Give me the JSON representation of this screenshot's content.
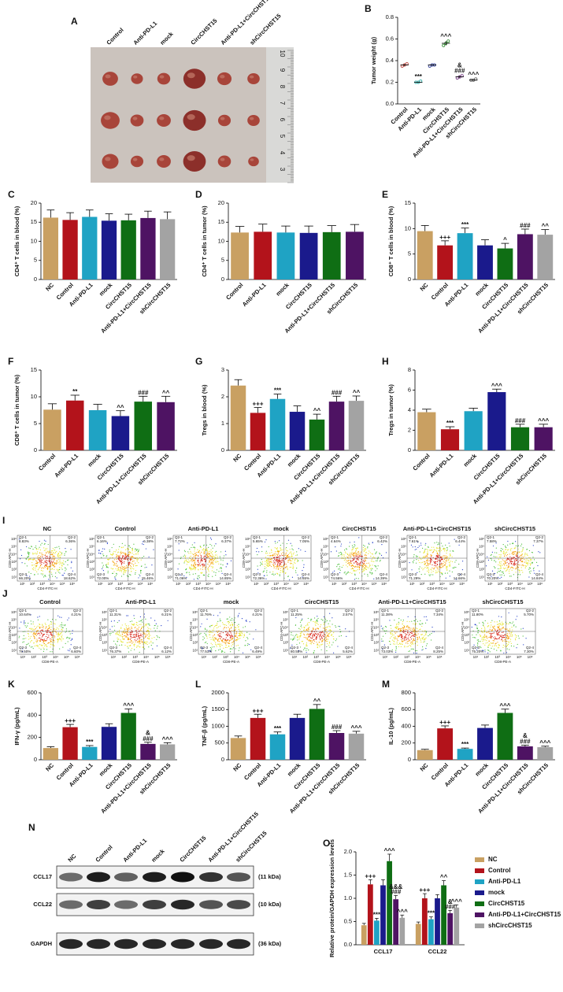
{
  "chart_data": [
    {
      "type": "dot",
      "label": "B",
      "ylabel": "Tumor weight (g)",
      "categories": [
        "Control",
        "Anti-PD-L1",
        "mock",
        "CircCHST15",
        "Anti-PD-L1+CircCHST15",
        "shCircCHST15"
      ],
      "values": [
        [
          0.35,
          0.36,
          0.37
        ],
        [
          0.2,
          0.2,
          0.21
        ],
        [
          0.35,
          0.36,
          0.36
        ],
        [
          0.54,
          0.56,
          0.58
        ],
        [
          0.24,
          0.25,
          0.26
        ],
        [
          0.22,
          0.22,
          0.23
        ]
      ],
      "means": [
        0.36,
        0.2,
        0.36,
        0.56,
        0.25,
        0.22
      ],
      "errors": [
        0.01,
        0.005,
        0.005,
        0.02,
        0.01,
        0.005
      ],
      "colors": [
        "#b5332b",
        "#1aa5a0",
        "#1e2f8c",
        "#2a8a2a",
        "#6a2b7a",
        "#555555"
      ],
      "annotations": [
        null,
        "***",
        null,
        "^^^",
        [
          "&",
          "###"
        ],
        "^^^"
      ],
      "ylim": [
        0,
        0.8
      ],
      "yticks": [
        {
          "value": 0,
          "label": "0.0"
        },
        0.2,
        0.4,
        0.6,
        0.8
      ]
    },
    {
      "type": "bar",
      "label": "C",
      "ylabel": "CD4⁺ T cells in blood (%)",
      "categories": [
        "NC",
        "Control",
        "Anti-PD-L1",
        "mock",
        "CircCHST15",
        "Anti-PD-L1+CircCHST15",
        "shCircCHST15"
      ],
      "values": [
        16.2,
        15.6,
        16.4,
        15.4,
        15.5,
        16.1,
        15.8
      ],
      "errors": [
        2.0,
        1.9,
        1.8,
        1.8,
        1.6,
        1.8,
        1.9
      ],
      "colors": [
        "#c9a062",
        "#b3131b",
        "#1fa3c4",
        "#1a1a8c",
        "#0f6e14",
        "#4e1363",
        "#a3a3a3"
      ],
      "annotations": [
        null,
        null,
        null,
        null,
        null,
        null,
        null
      ],
      "ylim": [
        0,
        20
      ],
      "yticks": [
        0,
        5,
        10,
        15,
        20
      ]
    },
    {
      "type": "bar",
      "label": "D",
      "ylabel": "CD4⁺ T cells in tumor (%)",
      "categories": [
        "Control",
        "Anti-PD-L1",
        "mock",
        "CircCHST15",
        "Anti-PD-L1+CircCHST15",
        "shCircCHST15"
      ],
      "values": [
        12.3,
        12.5,
        12.3,
        12.2,
        12.4,
        12.5
      ],
      "errors": [
        1.6,
        2.0,
        1.7,
        1.8,
        1.7,
        1.9
      ],
      "colors": [
        "#c9a062",
        "#b3131b",
        "#1fa3c4",
        "#1a1a8c",
        "#0f6e14",
        "#4e1363"
      ],
      "annotations": [
        null,
        null,
        null,
        null,
        null,
        null
      ],
      "ylim": [
        0,
        20
      ],
      "yticks": [
        0,
        5,
        10,
        15,
        20
      ]
    },
    {
      "type": "bar",
      "label": "E",
      "ylabel": "CD8⁺ T cells in blood (%)",
      "categories": [
        "NC",
        "Control",
        "Anti-PD-L1",
        "mock",
        "CircCHST15",
        "Anti-PD-L1+CircCHST15",
        "shCircCHST15"
      ],
      "values": [
        9.5,
        6.7,
        9.1,
        6.7,
        6.1,
        8.9,
        8.8
      ],
      "errors": [
        1.1,
        0.9,
        1.0,
        1.1,
        1.0,
        1.0,
        1.0
      ],
      "colors": [
        "#c9a062",
        "#b3131b",
        "#1fa3c4",
        "#1a1a8c",
        "#0f6e14",
        "#4e1363",
        "#a3a3a3"
      ],
      "annotations": [
        null,
        "+++",
        "***",
        null,
        "^",
        "###",
        "^^"
      ],
      "ylim": [
        0,
        15
      ],
      "yticks": [
        0,
        5,
        10,
        15
      ]
    },
    {
      "type": "bar",
      "label": "F",
      "ylabel": "CD8⁺ T cells in tumor (%)",
      "categories": [
        "Control",
        "Anti-PD-L1",
        "mock",
        "CircCHST15",
        "Anti-PD-L1+CircCHST15",
        "shCircCHST15"
      ],
      "values": [
        7.6,
        9.3,
        7.5,
        6.4,
        9.1,
        9.0
      ],
      "errors": [
        1.1,
        1.0,
        1.1,
        1.0,
        1.0,
        1.1
      ],
      "colors": [
        "#c9a062",
        "#b3131b",
        "#1fa3c4",
        "#1a1a8c",
        "#0f6e14",
        "#4e1363"
      ],
      "annotations": [
        null,
        "**",
        null,
        "^^",
        "###",
        "^^"
      ],
      "ylim": [
        0,
        15
      ],
      "yticks": [
        0,
        5,
        10,
        15
      ]
    },
    {
      "type": "bar",
      "label": "G",
      "ylabel": "Tregs in blood (%)",
      "categories": [
        "NC",
        "Control",
        "Anti-PD-L1",
        "mock",
        "CircCHST15",
        "Anti-PD-L1+CircCHST15",
        "shCircCHST15"
      ],
      "values": [
        2.42,
        1.4,
        1.92,
        1.44,
        1.15,
        1.82,
        1.85
      ],
      "errors": [
        0.22,
        0.2,
        0.18,
        0.22,
        0.2,
        0.2,
        0.18
      ],
      "colors": [
        "#c9a062",
        "#b3131b",
        "#1fa3c4",
        "#1a1a8c",
        "#0f6e14",
        "#4e1363",
        "#a3a3a3"
      ],
      "annotations": [
        null,
        "+++",
        "***",
        null,
        "^^",
        "###",
        "^^"
      ],
      "ylim": [
        0,
        3
      ],
      "yticks": [
        0,
        1,
        2,
        3
      ]
    },
    {
      "type": "bar",
      "label": "H",
      "ylabel": "Tregs in tumor (%)",
      "categories": [
        "Control",
        "Anti-PD-L1",
        "mock",
        "CircCHST15",
        "Anti-PD-L1+CircCHST15",
        "shCircCHST15"
      ],
      "values": [
        3.8,
        2.1,
        3.9,
        5.8,
        2.3,
        2.3
      ],
      "errors": [
        0.3,
        0.25,
        0.3,
        0.3,
        0.3,
        0.3
      ],
      "colors": [
        "#c9a062",
        "#b3131b",
        "#1fa3c4",
        "#1a1a8c",
        "#0f6e14",
        "#4e1363"
      ],
      "annotations": [
        null,
        "***",
        null,
        "^^^",
        "###",
        "^^^"
      ],
      "ylim": [
        0,
        8
      ],
      "yticks": [
        0,
        2,
        4,
        6,
        8
      ]
    },
    {
      "type": "bar",
      "label": "K",
      "ylabel": "IFN-γ (pg/mL)",
      "categories": [
        "NC",
        "Control",
        "Anti-PD-L1",
        "mock",
        "CircCHST15",
        "Anti-PD-L1+CircCHST15",
        "shCircCHST15"
      ],
      "values": [
        105,
        292,
        115,
        295,
        420,
        142,
        138
      ],
      "errors": [
        12,
        25,
        12,
        28,
        35,
        15,
        15
      ],
      "colors": [
        "#c9a062",
        "#b3131b",
        "#1fa3c4",
        "#1a1a8c",
        "#0f6e14",
        "#4e1363",
        "#a3a3a3"
      ],
      "annotations": [
        null,
        "+++",
        "***",
        null,
        "^^^",
        [
          "&",
          "###"
        ],
        "^^^"
      ],
      "ylim": [
        0,
        600
      ],
      "yticks": [
        0,
        200,
        400,
        600
      ]
    },
    {
      "type": "bar",
      "label": "L",
      "ylabel": "TNF-β (pg/mL)",
      "categories": [
        "NC",
        "Control",
        "Anti-PD-L1",
        "mock",
        "CircCHST15",
        "Anti-PD-L1+CircCHST15",
        "shCircCHST15"
      ],
      "values": [
        650,
        1250,
        760,
        1250,
        1520,
        800,
        780
      ],
      "errors": [
        60,
        110,
        70,
        110,
        130,
        70,
        70
      ],
      "colors": [
        "#c9a062",
        "#b3131b",
        "#1fa3c4",
        "#1a1a8c",
        "#0f6e14",
        "#4e1363",
        "#a3a3a3"
      ],
      "annotations": [
        null,
        "+++",
        "***",
        null,
        "^^",
        "###",
        "^^^"
      ],
      "ylim": [
        0,
        2000
      ],
      "yticks": [
        0,
        500,
        1000,
        1500,
        2000
      ]
    },
    {
      "type": "bar",
      "label": "M",
      "ylabel": "IL-10 (pg/mL)",
      "categories": [
        "NC",
        "Control",
        "Anti-PD-L1",
        "mock",
        "CircCHST15",
        "Anti-PD-L1+CircCHST15",
        "shCircCHST15"
      ],
      "values": [
        115,
        375,
        130,
        380,
        560,
        160,
        150
      ],
      "errors": [
        10,
        30,
        10,
        35,
        45,
        15,
        12
      ],
      "colors": [
        "#c9a062",
        "#b3131b",
        "#1fa3c4",
        "#1a1a8c",
        "#0f6e14",
        "#4e1363",
        "#a3a3a3"
      ],
      "annotations": [
        null,
        "+++",
        "***",
        null,
        "^^^",
        [
          "&",
          "###"
        ],
        "^^^"
      ],
      "ylim": [
        0,
        800
      ],
      "yticks": [
        0,
        200,
        400,
        600,
        800
      ]
    },
    {
      "type": "grouped_bar",
      "label": "O",
      "ylabel": "Relative protein/GAPDH expression levels",
      "categories": [
        "CCL17",
        "CCL22"
      ],
      "series": [
        {
          "name": "NC",
          "color": "#c9a062",
          "values": [
            0.42,
            0.45
          ],
          "errors": [
            0.04,
            0.04
          ],
          "annotations": [
            null,
            null
          ]
        },
        {
          "name": "Control",
          "color": "#b3131b",
          "values": [
            1.3,
            1.0
          ],
          "errors": [
            0.1,
            0.1
          ],
          "annotations": [
            "+++",
            "+++"
          ]
        },
        {
          "name": "Anti-PD-L1",
          "color": "#1fa3c4",
          "values": [
            0.52,
            0.55
          ],
          "errors": [
            0.05,
            0.05
          ],
          "annotations": [
            "***",
            "***"
          ]
        },
        {
          "name": "mock",
          "color": "#1a1a8c",
          "values": [
            1.28,
            1.0
          ],
          "errors": [
            0.12,
            0.08
          ],
          "annotations": [
            null,
            null
          ]
        },
        {
          "name": "CircCHST15",
          "color": "#0f6e14",
          "values": [
            1.8,
            1.28
          ],
          "errors": [
            0.15,
            0.1
          ],
          "annotations": [
            "^^^",
            "^^"
          ]
        },
        {
          "name": "Anti-PD-L1+CircCHST15",
          "color": "#4e1363",
          "values": [
            0.98,
            0.68
          ],
          "errors": [
            0.08,
            0.06
          ],
          "annotations": [
            [
              "&&&",
              "###"
            ],
            [
              "&",
              "###"
            ]
          ]
        },
        {
          "name": "shCircCHST15",
          "color": "#a3a3a3",
          "values": [
            0.58,
            0.8
          ],
          "errors": [
            0.06,
            0.06
          ],
          "annotations": [
            "^^^",
            "^^^"
          ]
        }
      ],
      "ylim": [
        0,
        2
      ],
      "yticks": [
        {
          "value": 0,
          "label": "0.0"
        },
        0.5,
        {
          "value": 1,
          "label": "1.0"
        },
        1.5,
        {
          "value": 2,
          "label": "2.0"
        }
      ]
    }
  ],
  "photo": {
    "label": "A",
    "groups": [
      "Control",
      "Anti-PD-L1",
      "mock",
      "CircCHST15",
      "Anti-PD-L1+CircCHST15",
      "shCircCHST15"
    ],
    "ruler": [
      "10",
      "9",
      "8",
      "7",
      "6",
      "5",
      "4",
      "3"
    ]
  },
  "flow": [
    {
      "label": "I",
      "xlabel": "CD4-FITC-H",
      "ylabel": "CD8-APC-H",
      "quadrants": [
        "Q2-1",
        "Q2-2",
        "Q2-3",
        "Q2-4"
      ],
      "ticks": [
        "10¹",
        "10²",
        "10³",
        "10⁴",
        "10⁵",
        "10⁶"
      ],
      "plots": [
        {
          "title": "NC",
          "values": [
            "8.83%",
            "6.36%",
            "66.20%",
            "18.62%"
          ]
        },
        {
          "title": "Control",
          "values": [
            "6.16%",
            "6.38%",
            "72.00%",
            "15.46%"
          ]
        },
        {
          "title": "Anti-PD-L1",
          "values": [
            "7.72%",
            "6.37%",
            "71.06%",
            "14.85%"
          ]
        },
        {
          "title": "mock",
          "values": [
            "5.65%",
            "7.05%",
            "72.36%",
            "14.65%"
          ]
        },
        {
          "title": "CircCHST15",
          "values": [
            "4.64%",
            "6.42%",
            "74.56%",
            "14.39%"
          ]
        },
        {
          "title": "Anti-PD-L1+CircCHST15",
          "values": [
            "7.61%",
            "6.44%",
            "71.29%",
            "14.66%"
          ]
        },
        {
          "title": "shCircCHST15",
          "values": [
            "7.58%",
            "7.37%",
            "70.20%",
            "14.84%"
          ]
        }
      ]
    },
    {
      "label": "J",
      "xlabel": "CD8-PE-A",
      "ylabel": "CD4-APC-H",
      "quadrants": [
        "Q2-1",
        "Q2-2",
        "Q2-3",
        "Q2-4"
      ],
      "ticks": [
        "10¹",
        "10²",
        "10³",
        "10⁴",
        "10⁵",
        "10⁶"
      ],
      "plots": [
        {
          "title": "Control",
          "values": [
            "10.64%",
            "4.21%",
            "78.50%",
            "6.60%"
          ]
        },
        {
          "title": "Anti-PD-L1",
          "values": [
            "11.31%",
            "6.21%",
            "76.37%",
            "6.12%"
          ]
        },
        {
          "title": "mock",
          "values": [
            "11.76%",
            "4.21%",
            "77.51%",
            "6.49%"
          ]
        },
        {
          "title": "CircCHST15",
          "values": [
            "11.25%",
            "2.57%",
            "80.55%",
            "5.62%"
          ]
        },
        {
          "title": "Anti-PD-L1+CircCHST15",
          "values": [
            "11.38%",
            "7.34%",
            "73.03%",
            "8.25%"
          ]
        },
        {
          "title": "shCircCHST15",
          "values": [
            "11.80%",
            "5.70%",
            "75.20%",
            "7.30%"
          ]
        }
      ]
    }
  ],
  "blot": {
    "label": "N",
    "lanes": [
      "NC",
      "Control",
      "Anti-PD-L1",
      "mock",
      "CircCHST15",
      "Anti-PD-L1+CircCHST15",
      "shCircCHST15"
    ],
    "rows": [
      {
        "name": "CCL17",
        "size": "(11 kDa)"
      },
      {
        "name": "CCL22",
        "size": "(10 kDa)"
      },
      {
        "name": "GAPDH",
        "size": "(36 kDa)"
      }
    ]
  }
}
